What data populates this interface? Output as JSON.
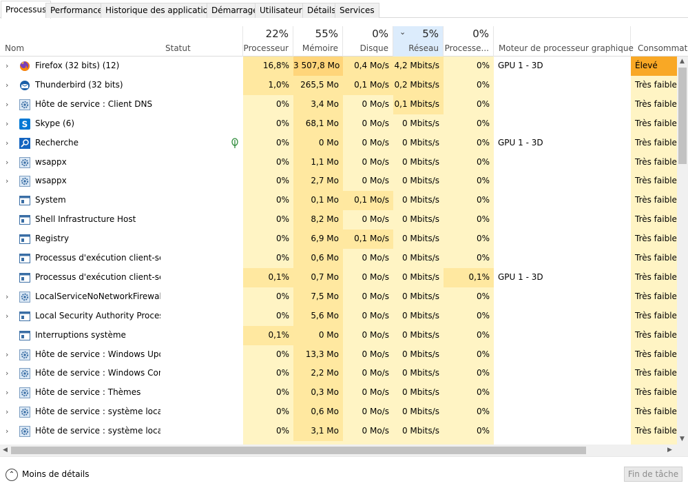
{
  "tabs": [
    "Processus",
    "Performance",
    "Historique des applications",
    "Démarrage",
    "Utilisateurs",
    "Détails",
    "Services"
  ],
  "header": {
    "name": "Nom",
    "status": "Statut",
    "cpu": {
      "pct": "22%",
      "label": "Processeur"
    },
    "mem": {
      "pct": "55%",
      "label": "Mémoire"
    },
    "disk": {
      "pct": "0%",
      "label": "Disque"
    },
    "net": {
      "pct": "5%",
      "label": "Réseau"
    },
    "gpu": {
      "pct": "0%",
      "label": "Processe..."
    },
    "gpuengine": "Moteur de processeur graphique",
    "power": "Consommati..."
  },
  "rows": [
    {
      "name": "Firefox (32 bits) (12)",
      "icon": "firefox-icon",
      "expand": true,
      "status": "",
      "cpu": "16,8%",
      "mem": "3 507,8 Mo",
      "disk": "0,4 Mo/s",
      "net": "4,2 Mbits/s",
      "gpu": "0%",
      "engine": "GPU 1 - 3D",
      "power": "Élevé"
    },
    {
      "name": "Thunderbird (32 bits)",
      "icon": "thunderbird-icon",
      "expand": true,
      "status": "",
      "cpu": "1,0%",
      "mem": "265,5 Mo",
      "disk": "0,1 Mo/s",
      "net": "0,2 Mbits/s",
      "gpu": "0%",
      "engine": "",
      "power": "Très faible"
    },
    {
      "name": "Hôte de service : Client DNS",
      "icon": "gear-icon",
      "expand": true,
      "status": "",
      "cpu": "0%",
      "mem": "3,4 Mo",
      "disk": "0 Mo/s",
      "net": "0,1 Mbits/s",
      "gpu": "0%",
      "engine": "",
      "power": "Très faible"
    },
    {
      "name": "Skype (6)",
      "icon": "skype-icon",
      "expand": true,
      "status": "",
      "cpu": "0%",
      "mem": "68,1 Mo",
      "disk": "0 Mo/s",
      "net": "0 Mbits/s",
      "gpu": "0%",
      "engine": "",
      "power": "Très faible"
    },
    {
      "name": "Recherche",
      "icon": "search-icon",
      "expand": true,
      "status": "leaf",
      "cpu": "0%",
      "mem": "0 Mo",
      "disk": "0 Mo/s",
      "net": "0 Mbits/s",
      "gpu": "0%",
      "engine": "GPU 1 - 3D",
      "power": "Très faible"
    },
    {
      "name": "wsappx",
      "icon": "gear-icon",
      "expand": true,
      "status": "",
      "cpu": "0%",
      "mem": "1,1 Mo",
      "disk": "0 Mo/s",
      "net": "0 Mbits/s",
      "gpu": "0%",
      "engine": "",
      "power": "Très faible"
    },
    {
      "name": "wsappx",
      "icon": "gear-icon",
      "expand": true,
      "status": "",
      "cpu": "0%",
      "mem": "2,7 Mo",
      "disk": "0 Mo/s",
      "net": "0 Mbits/s",
      "gpu": "0%",
      "engine": "",
      "power": "Très faible"
    },
    {
      "name": "System",
      "icon": "window-icon",
      "expand": false,
      "status": "",
      "cpu": "0%",
      "mem": "0,1 Mo",
      "disk": "0,1 Mo/s",
      "net": "0 Mbits/s",
      "gpu": "0%",
      "engine": "",
      "power": "Très faible"
    },
    {
      "name": "Shell Infrastructure Host",
      "icon": "window-icon",
      "expand": false,
      "status": "",
      "cpu": "0%",
      "mem": "8,2 Mo",
      "disk": "0 Mo/s",
      "net": "0 Mbits/s",
      "gpu": "0%",
      "engine": "",
      "power": "Très faible"
    },
    {
      "name": "Registry",
      "icon": "window-icon",
      "expand": false,
      "status": "",
      "cpu": "0%",
      "mem": "6,9 Mo",
      "disk": "0,1 Mo/s",
      "net": "0 Mbits/s",
      "gpu": "0%",
      "engine": "",
      "power": "Très faible"
    },
    {
      "name": "Processus d'exécution client-ser...",
      "icon": "window-icon",
      "expand": false,
      "status": "",
      "cpu": "0%",
      "mem": "0,6 Mo",
      "disk": "0 Mo/s",
      "net": "0 Mbits/s",
      "gpu": "0%",
      "engine": "",
      "power": "Très faible"
    },
    {
      "name": "Processus d'exécution client-ser...",
      "icon": "window-icon",
      "expand": false,
      "status": "",
      "cpu": "0,1%",
      "mem": "0,7 Mo",
      "disk": "0 Mo/s",
      "net": "0 Mbits/s",
      "gpu": "0,1%",
      "engine": "GPU 1 - 3D",
      "power": "Très faible"
    },
    {
      "name": "LocalServiceNoNetworkFirewall ...",
      "icon": "gear-icon",
      "expand": true,
      "status": "",
      "cpu": "0%",
      "mem": "7,5 Mo",
      "disk": "0 Mo/s",
      "net": "0 Mbits/s",
      "gpu": "0%",
      "engine": "",
      "power": "Très faible"
    },
    {
      "name": "Local Security Authority Process...",
      "icon": "window-icon",
      "expand": true,
      "status": "",
      "cpu": "0%",
      "mem": "5,6 Mo",
      "disk": "0 Mo/s",
      "net": "0 Mbits/s",
      "gpu": "0%",
      "engine": "",
      "power": "Très faible"
    },
    {
      "name": "Interruptions système",
      "icon": "window-icon",
      "expand": false,
      "status": "",
      "cpu": "0,1%",
      "mem": "0 Mo",
      "disk": "0 Mo/s",
      "net": "0 Mbits/s",
      "gpu": "0%",
      "engine": "",
      "power": "Très faible"
    },
    {
      "name": "Hôte de service : Windows Upd...",
      "icon": "gear-icon",
      "expand": true,
      "status": "",
      "cpu": "0%",
      "mem": "13,3 Mo",
      "disk": "0 Mo/s",
      "net": "0 Mbits/s",
      "gpu": "0%",
      "engine": "",
      "power": "Très faible"
    },
    {
      "name": "Hôte de service : Windows Con...",
      "icon": "gear-icon",
      "expand": true,
      "status": "",
      "cpu": "0%",
      "mem": "2,2 Mo",
      "disk": "0 Mo/s",
      "net": "0 Mbits/s",
      "gpu": "0%",
      "engine": "",
      "power": "Très faible"
    },
    {
      "name": "Hôte de service : Thèmes",
      "icon": "gear-icon",
      "expand": true,
      "status": "",
      "cpu": "0%",
      "mem": "0,3 Mo",
      "disk": "0 Mo/s",
      "net": "0 Mbits/s",
      "gpu": "0%",
      "engine": "",
      "power": "Très faible"
    },
    {
      "name": "Hôte de service : système local",
      "icon": "gear-icon",
      "expand": true,
      "status": "",
      "cpu": "0%",
      "mem": "0,6 Mo",
      "disk": "0 Mo/s",
      "net": "0 Mbits/s",
      "gpu": "0%",
      "engine": "",
      "power": "Très faible"
    },
    {
      "name": "Hôte de service : système local",
      "icon": "gear-icon",
      "expand": true,
      "status": "",
      "cpu": "0%",
      "mem": "3,1 Mo",
      "disk": "0 Mo/s",
      "net": "0 Mbits/s",
      "gpu": "0%",
      "engine": "",
      "power": "Très faible"
    }
  ],
  "footer": {
    "fewer": "Moins de détails",
    "end": "Fin de tâche"
  },
  "colors": {
    "light": "#fff4c4",
    "mid": "#ffe8a0",
    "high": "#ffd57a",
    "power_high": "#f9a825",
    "sorted_header": "#dcecfc"
  }
}
